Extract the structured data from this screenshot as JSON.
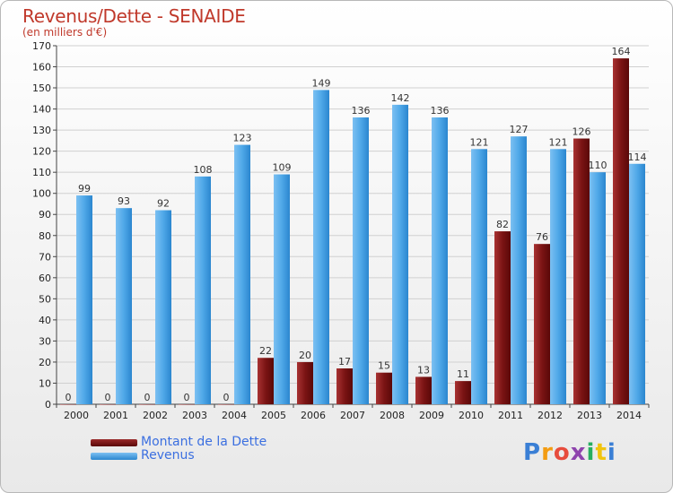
{
  "header": {
    "title": "Revenus/Dette - SENAIDE",
    "subtitle": "(en milliers d'€)"
  },
  "chart_data": {
    "type": "bar",
    "categories": [
      "2000",
      "2001",
      "2002",
      "2003",
      "2004",
      "2005",
      "2006",
      "2007",
      "2008",
      "2009",
      "2010",
      "2011",
      "2012",
      "2013",
      "2014"
    ],
    "series": [
      {
        "name": "Montant de la Dette",
        "color": "#7b1414",
        "values": [
          0,
          0,
          0,
          0,
          0,
          22,
          20,
          17,
          15,
          13,
          11,
          82,
          76,
          126,
          164
        ]
      },
      {
        "name": "Revenus",
        "color": "#4fa8e8",
        "values": [
          99,
          93,
          92,
          108,
          123,
          109,
          149,
          136,
          142,
          136,
          121,
          127,
          121,
          110,
          114
        ]
      }
    ],
    "ylim": [
      0,
      170
    ],
    "yticks": [
      0,
      10,
      20,
      30,
      40,
      50,
      60,
      70,
      80,
      90,
      100,
      110,
      120,
      130,
      140,
      150,
      160,
      170
    ],
    "grid": true,
    "legend_position": "bottom-left"
  },
  "legend": {
    "items": [
      {
        "label": "Montant de la Dette",
        "color": "#7b1414"
      },
      {
        "label": "Revenus",
        "color": "#4fa8e8"
      }
    ]
  },
  "logo": {
    "letters": [
      "P",
      "r",
      "o",
      "x",
      "i",
      "t",
      "i"
    ],
    "colors": [
      "#3a7fd5",
      "#f39c12",
      "#e74c3c",
      "#8e44ad",
      "#27ae60",
      "#f1c40f",
      "#3a7fd5"
    ]
  }
}
